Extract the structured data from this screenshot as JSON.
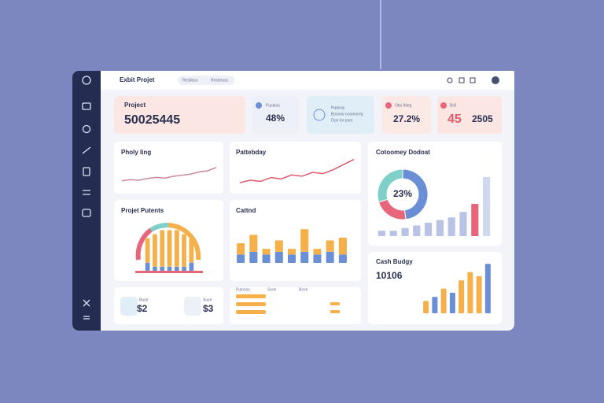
{
  "header": {
    "title": "Exbit Projet",
    "tabs": [
      "Restibos",
      "Restmsss"
    ]
  },
  "kpis": [
    {
      "label": "Project",
      "value": "50025445"
    },
    {
      "label": "Pusbios",
      "value": "48%"
    },
    {
      "label": "Pamray",
      "lines": [
        "Bosrow ooomoreg",
        "Ooe lor pors"
      ]
    },
    {
      "label": "Obs tbleg",
      "value": "27.2%"
    },
    {
      "label": "Bsll",
      "value": "45",
      "extra": "2505"
    }
  ],
  "summary": [
    {
      "label": "Buse",
      "value": "$2"
    },
    {
      "label": "Suse",
      "value": "$3"
    }
  ],
  "table": {
    "headers": [
      "Pulosso",
      "Sose",
      "Bose"
    ]
  },
  "chart_data": [
    {
      "type": "line",
      "title": "Pholy ling",
      "color": "#c98a9c",
      "values": [
        3,
        3.5,
        3.2,
        4,
        4.5,
        4.2,
        5,
        5.5,
        6,
        7,
        7.5,
        9
      ],
      "ylim": [
        0,
        15
      ]
    },
    {
      "type": "line",
      "title": "Pattebday",
      "color": "#e05a6a",
      "values": [
        3,
        4,
        3.5,
        5,
        4.5,
        6,
        5.5,
        7,
        6.5,
        8,
        10,
        12
      ],
      "ylim": [
        0,
        14
      ]
    },
    {
      "type": "bar",
      "title": "Projet Putents",
      "series": [
        {
          "color": "#6b8fd6",
          "values": [
            2,
            1,
            1,
            1,
            1,
            1,
            2
          ]
        },
        {
          "color": "#f5b04a",
          "values": [
            6,
            8,
            9,
            9,
            9,
            8,
            6
          ]
        }
      ],
      "ylim": [
        0,
        12
      ]
    },
    {
      "type": "bar",
      "title": "Cattnd",
      "series": [
        {
          "color": "#6b8fd6",
          "values": [
            3,
            4,
            3,
            4,
            3,
            4,
            3,
            4,
            3
          ]
        },
        {
          "color": "#f5b04a",
          "values": [
            4,
            6,
            2,
            4,
            2,
            8,
            2,
            4,
            6
          ]
        }
      ],
      "ylim": [
        0,
        14
      ]
    },
    {
      "type": "pie",
      "title": "Cotoomey Dodoat",
      "center_label": "23%",
      "values": [
        48,
        22,
        30
      ],
      "colors": [
        "#6b8fd6",
        "#e8667a",
        "#7fd0c8"
      ]
    },
    {
      "type": "bar",
      "values": [
        1,
        1,
        1.5,
        2,
        2.5,
        3,
        3.5,
        4.5,
        6,
        11
      ],
      "colors": [
        "#b8c3e6",
        "#b8c3e6",
        "#b8c3e6",
        "#b8c3e6",
        "#b8c3e6",
        "#b8c3e6",
        "#b8c3e6",
        "#b8c3e6",
        "#e8667a",
        "#d0d8f0"
      ],
      "ylim": [
        0,
        12
      ]
    },
    {
      "type": "bar",
      "title": "Cash Budgy",
      "total": "10106",
      "values": [
        3,
        4,
        6,
        5,
        8,
        10,
        9,
        12
      ],
      "colors": [
        "#f5b04a",
        "#6b8fd6",
        "#f5b04a",
        "#6b8fd6",
        "#f5b04a",
        "#f5b04a",
        "#f5b04a",
        "#6b8fd6"
      ],
      "ylim": [
        0,
        13
      ]
    }
  ]
}
